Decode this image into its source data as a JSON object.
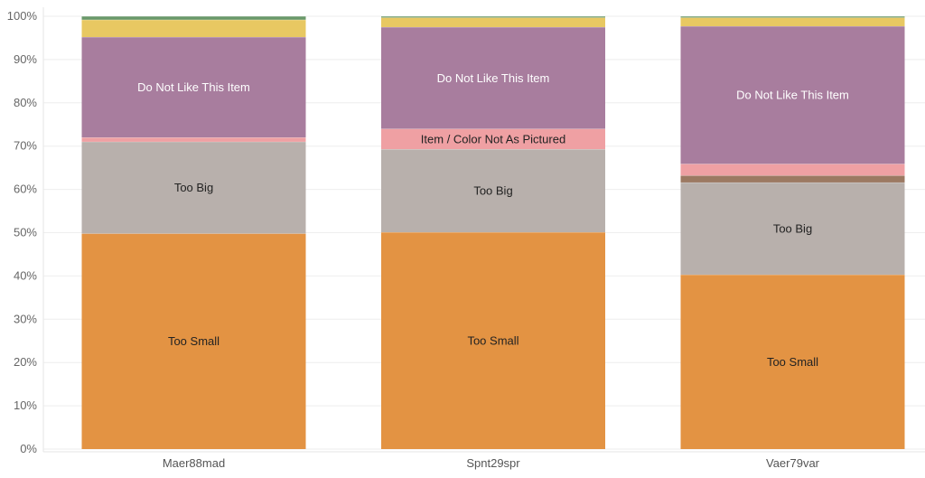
{
  "chart_data": {
    "type": "bar",
    "stacked": true,
    "normalized": true,
    "categories": [
      "Maer88mad",
      "Spnt29spr",
      "Vaer79var"
    ],
    "ylim": [
      0,
      100
    ],
    "yticks": [
      "0%",
      "10%",
      "20%",
      "30%",
      "40%",
      "50%",
      "60%",
      "70%",
      "80%",
      "90%",
      "100%"
    ],
    "grid": true,
    "series": [
      {
        "name": "Too Small",
        "color": "#E39343",
        "values": [
          49.8,
          50.1,
          40.3
        ]
      },
      {
        "name": "Too Big",
        "color": "#B8B0AC",
        "values": [
          21.2,
          19.2,
          21.3
        ]
      },
      {
        "name": "",
        "color": "#9C7962",
        "values": [
          0.0,
          0.0,
          1.6
        ]
      },
      {
        "name": "Item / Color Not As Pictured",
        "color": "#EFA0A3",
        "values": [
          1.0,
          4.7,
          2.7
        ]
      },
      {
        "name": "Do Not Like This Item",
        "color": "#A87D9E",
        "values": [
          23.2,
          23.5,
          31.8
        ]
      },
      {
        "name": "",
        "color": "#E8C862",
        "values": [
          4.0,
          2.2,
          2.0
        ]
      },
      {
        "name": "",
        "color": "#69986A",
        "values": [
          0.8,
          0.3,
          0.3
        ]
      }
    ],
    "labels": [
      {
        "category": 0,
        "series": "Too Small",
        "text": "Too Small"
      },
      {
        "category": 0,
        "series": "Too Big",
        "text": "Too Big"
      },
      {
        "category": 0,
        "series": "Do Not Like This Item",
        "text": "Do Not Like This Item"
      },
      {
        "category": 1,
        "series": "Too Small",
        "text": "Too Small"
      },
      {
        "category": 1,
        "series": "Too Big",
        "text": "Too Big"
      },
      {
        "category": 1,
        "series": "Item / Color Not As Pictured",
        "text": "Item / Color Not As Pictured"
      },
      {
        "category": 1,
        "series": "Do Not Like This Item",
        "text": "Do Not Like This Item"
      },
      {
        "category": 2,
        "series": "Too Small",
        "text": "Too Small"
      },
      {
        "category": 2,
        "series": "Too Big",
        "text": "Too Big"
      },
      {
        "category": 2,
        "series": "Do Not Like This Item",
        "text": "Do Not Like This Item"
      }
    ]
  }
}
